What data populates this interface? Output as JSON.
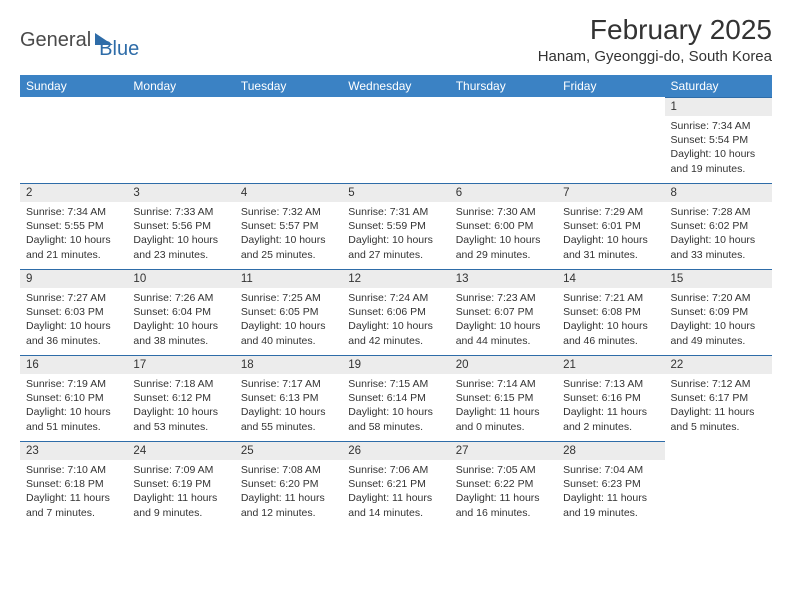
{
  "logo": {
    "part1": "General",
    "part2": "Blue"
  },
  "header": {
    "month_title": "February 2025",
    "location": "Hanam, Gyeonggi-do, South Korea"
  },
  "colors": {
    "header_blue": "#3b82c4",
    "accent_blue": "#2e6ca8",
    "row_gray": "#ececec",
    "text_dark": "#333333",
    "border_line": "#2e6ca8",
    "background": "#ffffff"
  },
  "typography": {
    "title_fontsize": 28,
    "location_fontsize": 15,
    "weekday_fontsize": 12,
    "daynum_fontsize": 11.5,
    "content_fontsize": 10.5,
    "font_family": "Arial"
  },
  "weekdays": [
    "Sunday",
    "Monday",
    "Tuesday",
    "Wednesday",
    "Thursday",
    "Friday",
    "Saturday"
  ],
  "weeks": [
    [
      null,
      null,
      null,
      null,
      null,
      null,
      {
        "d": "1",
        "sr": "Sunrise: 7:34 AM",
        "ss": "Sunset: 5:54 PM",
        "dl": "Daylight: 10 hours and 19 minutes."
      }
    ],
    [
      {
        "d": "2",
        "sr": "Sunrise: 7:34 AM",
        "ss": "Sunset: 5:55 PM",
        "dl": "Daylight: 10 hours and 21 minutes."
      },
      {
        "d": "3",
        "sr": "Sunrise: 7:33 AM",
        "ss": "Sunset: 5:56 PM",
        "dl": "Daylight: 10 hours and 23 minutes."
      },
      {
        "d": "4",
        "sr": "Sunrise: 7:32 AM",
        "ss": "Sunset: 5:57 PM",
        "dl": "Daylight: 10 hours and 25 minutes."
      },
      {
        "d": "5",
        "sr": "Sunrise: 7:31 AM",
        "ss": "Sunset: 5:59 PM",
        "dl": "Daylight: 10 hours and 27 minutes."
      },
      {
        "d": "6",
        "sr": "Sunrise: 7:30 AM",
        "ss": "Sunset: 6:00 PM",
        "dl": "Daylight: 10 hours and 29 minutes."
      },
      {
        "d": "7",
        "sr": "Sunrise: 7:29 AM",
        "ss": "Sunset: 6:01 PM",
        "dl": "Daylight: 10 hours and 31 minutes."
      },
      {
        "d": "8",
        "sr": "Sunrise: 7:28 AM",
        "ss": "Sunset: 6:02 PM",
        "dl": "Daylight: 10 hours and 33 minutes."
      }
    ],
    [
      {
        "d": "9",
        "sr": "Sunrise: 7:27 AM",
        "ss": "Sunset: 6:03 PM",
        "dl": "Daylight: 10 hours and 36 minutes."
      },
      {
        "d": "10",
        "sr": "Sunrise: 7:26 AM",
        "ss": "Sunset: 6:04 PM",
        "dl": "Daylight: 10 hours and 38 minutes."
      },
      {
        "d": "11",
        "sr": "Sunrise: 7:25 AM",
        "ss": "Sunset: 6:05 PM",
        "dl": "Daylight: 10 hours and 40 minutes."
      },
      {
        "d": "12",
        "sr": "Sunrise: 7:24 AM",
        "ss": "Sunset: 6:06 PM",
        "dl": "Daylight: 10 hours and 42 minutes."
      },
      {
        "d": "13",
        "sr": "Sunrise: 7:23 AM",
        "ss": "Sunset: 6:07 PM",
        "dl": "Daylight: 10 hours and 44 minutes."
      },
      {
        "d": "14",
        "sr": "Sunrise: 7:21 AM",
        "ss": "Sunset: 6:08 PM",
        "dl": "Daylight: 10 hours and 46 minutes."
      },
      {
        "d": "15",
        "sr": "Sunrise: 7:20 AM",
        "ss": "Sunset: 6:09 PM",
        "dl": "Daylight: 10 hours and 49 minutes."
      }
    ],
    [
      {
        "d": "16",
        "sr": "Sunrise: 7:19 AM",
        "ss": "Sunset: 6:10 PM",
        "dl": "Daylight: 10 hours and 51 minutes."
      },
      {
        "d": "17",
        "sr": "Sunrise: 7:18 AM",
        "ss": "Sunset: 6:12 PM",
        "dl": "Daylight: 10 hours and 53 minutes."
      },
      {
        "d": "18",
        "sr": "Sunrise: 7:17 AM",
        "ss": "Sunset: 6:13 PM",
        "dl": "Daylight: 10 hours and 55 minutes."
      },
      {
        "d": "19",
        "sr": "Sunrise: 7:15 AM",
        "ss": "Sunset: 6:14 PM",
        "dl": "Daylight: 10 hours and 58 minutes."
      },
      {
        "d": "20",
        "sr": "Sunrise: 7:14 AM",
        "ss": "Sunset: 6:15 PM",
        "dl": "Daylight: 11 hours and 0 minutes."
      },
      {
        "d": "21",
        "sr": "Sunrise: 7:13 AM",
        "ss": "Sunset: 6:16 PM",
        "dl": "Daylight: 11 hours and 2 minutes."
      },
      {
        "d": "22",
        "sr": "Sunrise: 7:12 AM",
        "ss": "Sunset: 6:17 PM",
        "dl": "Daylight: 11 hours and 5 minutes."
      }
    ],
    [
      {
        "d": "23",
        "sr": "Sunrise: 7:10 AM",
        "ss": "Sunset: 6:18 PM",
        "dl": "Daylight: 11 hours and 7 minutes."
      },
      {
        "d": "24",
        "sr": "Sunrise: 7:09 AM",
        "ss": "Sunset: 6:19 PM",
        "dl": "Daylight: 11 hours and 9 minutes."
      },
      {
        "d": "25",
        "sr": "Sunrise: 7:08 AM",
        "ss": "Sunset: 6:20 PM",
        "dl": "Daylight: 11 hours and 12 minutes."
      },
      {
        "d": "26",
        "sr": "Sunrise: 7:06 AM",
        "ss": "Sunset: 6:21 PM",
        "dl": "Daylight: 11 hours and 14 minutes."
      },
      {
        "d": "27",
        "sr": "Sunrise: 7:05 AM",
        "ss": "Sunset: 6:22 PM",
        "dl": "Daylight: 11 hours and 16 minutes."
      },
      {
        "d": "28",
        "sr": "Sunrise: 7:04 AM",
        "ss": "Sunset: 6:23 PM",
        "dl": "Daylight: 11 hours and 19 minutes."
      },
      null
    ]
  ]
}
